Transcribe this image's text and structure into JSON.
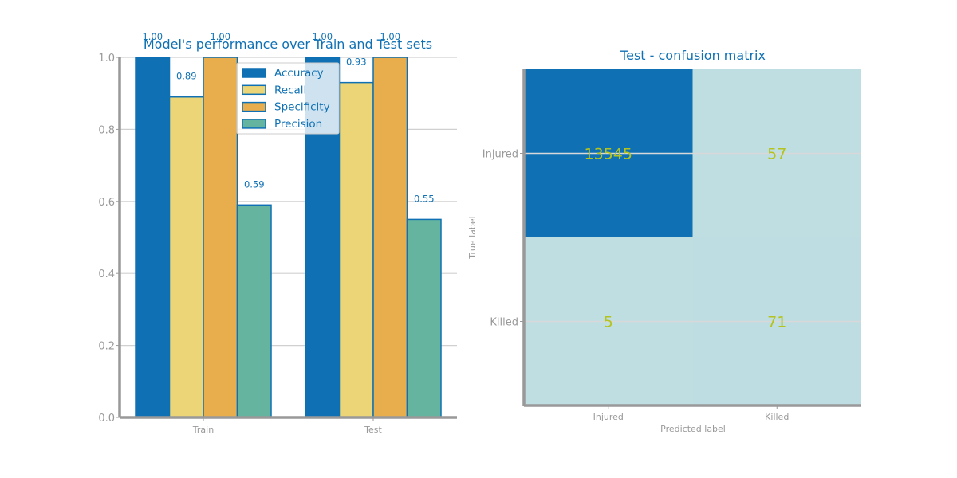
{
  "chart_data": [
    {
      "type": "bar",
      "title": "Model's performance over Train and Test sets",
      "categories": [
        "Train",
        "Test"
      ],
      "series": [
        {
          "name": "Accuracy",
          "values": [
            1.0,
            1.0
          ],
          "labels": [
            "1.00",
            "1.00"
          ]
        },
        {
          "name": "Recall",
          "values": [
            0.89,
            0.93
          ],
          "labels": [
            "0.89",
            "0.93"
          ]
        },
        {
          "name": "Specificity",
          "values": [
            1.0,
            1.0
          ],
          "labels": [
            "1.00",
            "1.00"
          ]
        },
        {
          "name": "Precision",
          "values": [
            0.59,
            0.55
          ],
          "labels": [
            "0.59",
            "0.55"
          ]
        }
      ],
      "ylim": [
        0,
        1
      ],
      "yticks": [
        "0.0",
        "0.2",
        "0.4",
        "0.6",
        "0.8",
        "1.0"
      ],
      "legend": "top-center",
      "grid": "y"
    },
    {
      "type": "heatmap",
      "title": "Test - confusion matrix",
      "xlabel": "Predicted label",
      "ylabel": "True label",
      "x_ticks": [
        "Injured",
        "Killed"
      ],
      "y_ticks": [
        "Injured",
        "Killed"
      ],
      "matrix": [
        [
          13545,
          57
        ],
        [
          5,
          71
        ]
      ],
      "matrix_labels": [
        [
          "13545",
          "57"
        ],
        [
          "5",
          "71"
        ]
      ]
    }
  ],
  "colors": {
    "accuracy": "#0f71b4",
    "recall": "#ecd577",
    "specificity": "#e8ad4d",
    "precision": "#64b4a0",
    "bar_edge": "#0f71b4",
    "axis": "#999999",
    "tick_text": "#999999",
    "title": "#0f71b4",
    "grid": "#d0d0d0",
    "heat_high": "#0f71b4",
    "heat_low": "#bfdee2",
    "cell_text": "#b5c31e"
  }
}
